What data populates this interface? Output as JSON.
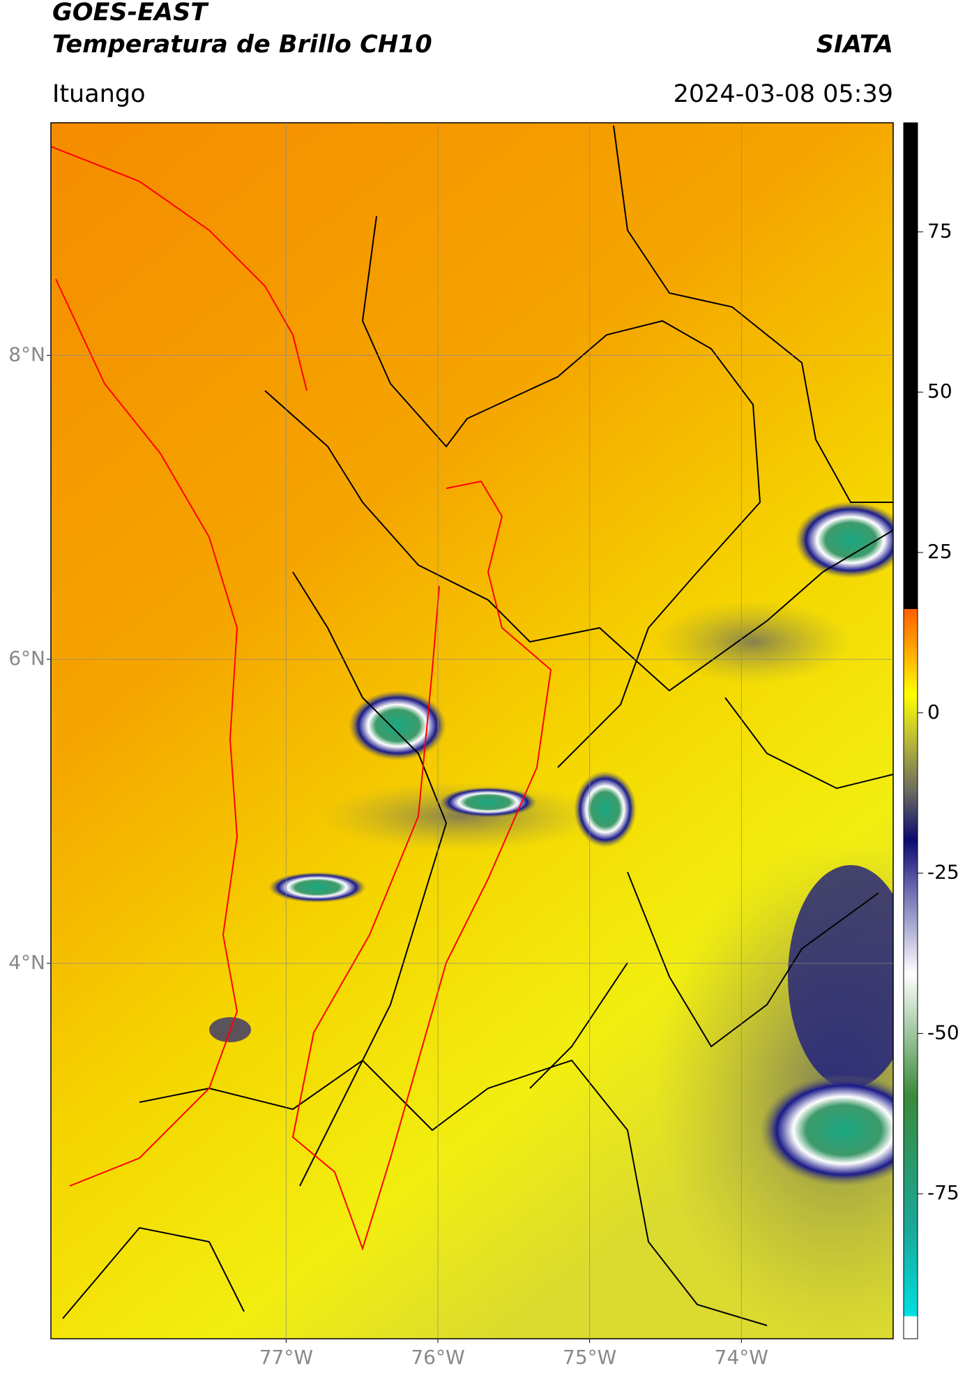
{
  "header": {
    "satellite": "GOES-EAST",
    "product": "Temperatura de Brillo CH10",
    "agency": "SIATA",
    "region": "Ituango",
    "datetime": "2024-03-08 05:39"
  },
  "map": {
    "lat_range": [
      1.53,
      9.53
    ],
    "lon_range": [
      -78.55,
      -73.0
    ],
    "lat_ticks": [
      {
        "value": 8,
        "label": "8°N"
      },
      {
        "value": 6,
        "label": "6°N"
      },
      {
        "value": 4,
        "label": "4°N"
      }
    ],
    "lon_ticks": [
      {
        "value": -77,
        "label": "77°W"
      },
      {
        "value": -76,
        "label": "76°W"
      },
      {
        "value": -75,
        "label": "75°W"
      },
      {
        "value": -74,
        "label": "74°W"
      }
    ]
  },
  "colorbar": {
    "range": [
      -97.6,
      92
    ],
    "ticks": [
      75,
      50,
      25,
      0,
      -25,
      -50,
      -75
    ]
  }
}
